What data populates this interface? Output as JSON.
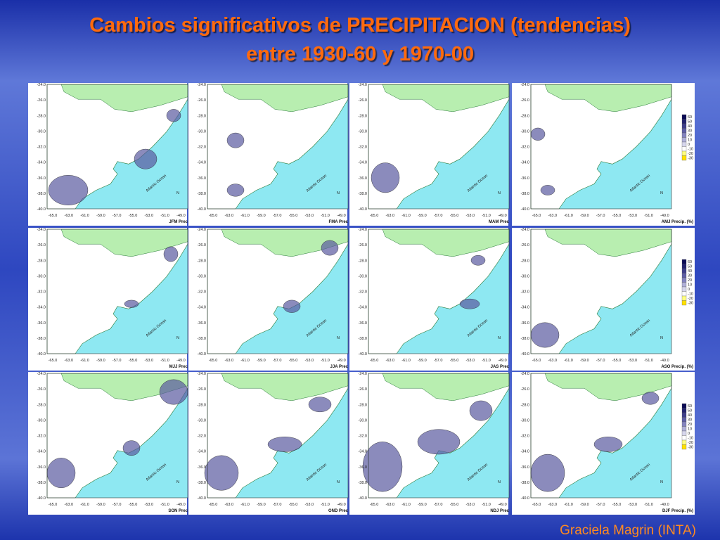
{
  "header": {
    "title_line1": "Cambios significativos de PRECIPITACION (tendencias)",
    "title_line2": "entre 1930-60 y 1970-00"
  },
  "panels": [
    {
      "label": "JFM Prec"
    },
    {
      "label": "FMA Prec"
    },
    {
      "label": "MAM Prec"
    },
    {
      "label": "AMJ Precip. (%)"
    },
    {
      "label": "MJJ Prec"
    },
    {
      "label": "JJA Prec"
    },
    {
      "label": "JAS Prec"
    },
    {
      "label": "ASO Precip. (%)"
    },
    {
      "label": "SON Prec"
    },
    {
      "label": "OND Prec"
    },
    {
      "label": "NDJ Prec"
    },
    {
      "label": "DJF Precip. (%)"
    }
  ],
  "map": {
    "lat_ticks": [
      "-24.0",
      "-26.0",
      "-28.0",
      "-30.0",
      "-32.0",
      "-34.0",
      "-36.0",
      "-38.0",
      "-40.0"
    ],
    "lon_ticks": [
      "-65.0",
      "-63.0",
      "-61.0",
      "-59.0",
      "-57.0",
      "-55.0",
      "-53.0",
      "-51.0",
      "-49.0"
    ],
    "ocean_label": "Atlantic Ocean",
    "north": "N"
  },
  "legend": {
    "labels": [
      "60",
      "50",
      "40",
      "30",
      "20",
      "10",
      "0",
      "-10",
      "-20",
      "-30"
    ]
  },
  "footer": {
    "author": "Graciela Magrin (INTA)"
  }
}
